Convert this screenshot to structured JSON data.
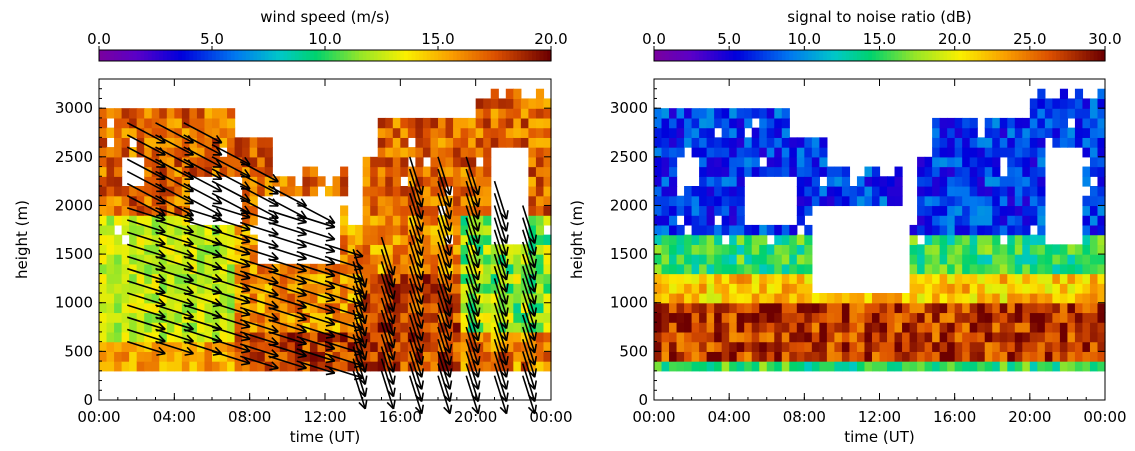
{
  "chart_data": [
    {
      "type": "heatmap",
      "title": "",
      "xlabel": "time (UT)",
      "ylabel": "height (m)",
      "xlim": [
        0,
        24
      ],
      "ylim": [
        0,
        3300
      ],
      "xticks": [
        "00:00",
        "04:00",
        "08:00",
        "12:00",
        "16:00",
        "20:00",
        "00:00"
      ],
      "yticks": [
        "0",
        "500",
        "1000",
        "1500",
        "2000",
        "2500",
        "3000"
      ],
      "colorbar": {
        "label": "wind speed (m/s)",
        "range": [
          0,
          20
        ],
        "ticks": [
          "0.0",
          "5.0",
          "10.0",
          "15.0",
          "20.0"
        ],
        "colormap": "rainbow"
      },
      "overlay": "wind direction arrows",
      "profile_times_h": [
        1.5,
        3.0,
        4.5,
        6.0,
        7.5,
        9.0,
        10.5,
        12.0,
        13.5,
        15.0,
        16.5,
        18.0,
        19.5,
        21.0,
        22.5
      ],
      "profile_tops_m": [
        2900,
        2900,
        2900,
        2700,
        2500,
        2200,
        2100,
        1700,
        1600,
        1700,
        2600,
        2600,
        2600,
        2300,
        2100
      ],
      "profile_bottoms_m": [
        600,
        600,
        600,
        500,
        450,
        450,
        400,
        350,
        300,
        300,
        250,
        250,
        250,
        250,
        250
      ]
    },
    {
      "type": "heatmap",
      "title": "",
      "xlabel": "time (UT)",
      "ylabel": "height (m)",
      "xlim": [
        0,
        24
      ],
      "ylim": [
        0,
        3300
      ],
      "xticks": [
        "00:00",
        "04:00",
        "08:00",
        "12:00",
        "16:00",
        "20:00",
        "00:00"
      ],
      "yticks": [
        "0",
        "500",
        "1000",
        "1500",
        "2000",
        "2500",
        "3000"
      ],
      "colorbar": {
        "label": "signal to noise ratio (dB)",
        "range": [
          0,
          30
        ],
        "ticks": [
          "0.0",
          "5.0",
          "10.0",
          "15.0",
          "20.0",
          "25.0",
          "30.0"
        ],
        "colormap": "rainbow"
      }
    }
  ]
}
